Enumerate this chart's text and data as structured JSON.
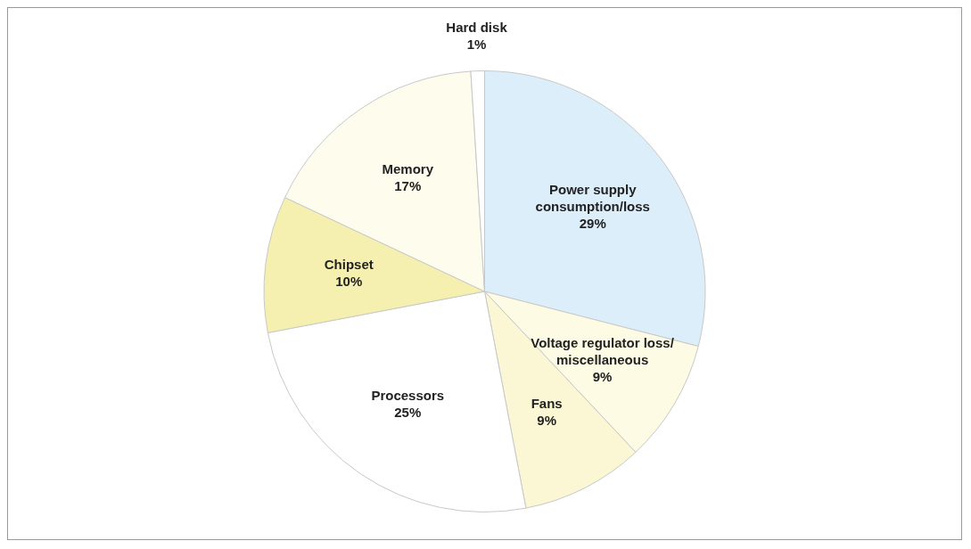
{
  "chart_data": {
    "type": "pie",
    "categories": [
      "Power supply consumption/loss",
      "Voltage regulator loss/ miscellaneous",
      "Fans",
      "Processors",
      "Chipset",
      "Memory",
      "Hard disk"
    ],
    "values": [
      29,
      9,
      9,
      25,
      10,
      17,
      1
    ],
    "value_labels": [
      "29%",
      "9%",
      "9%",
      "25%",
      "10%",
      "17%",
      "1%"
    ],
    "colors": [
      "#dceefa",
      "#fdfbe4",
      "#fbf7d4",
      "#ffffff",
      "#f5f0b0",
      "#fefcec",
      "#ffffff"
    ],
    "legend": false
  }
}
